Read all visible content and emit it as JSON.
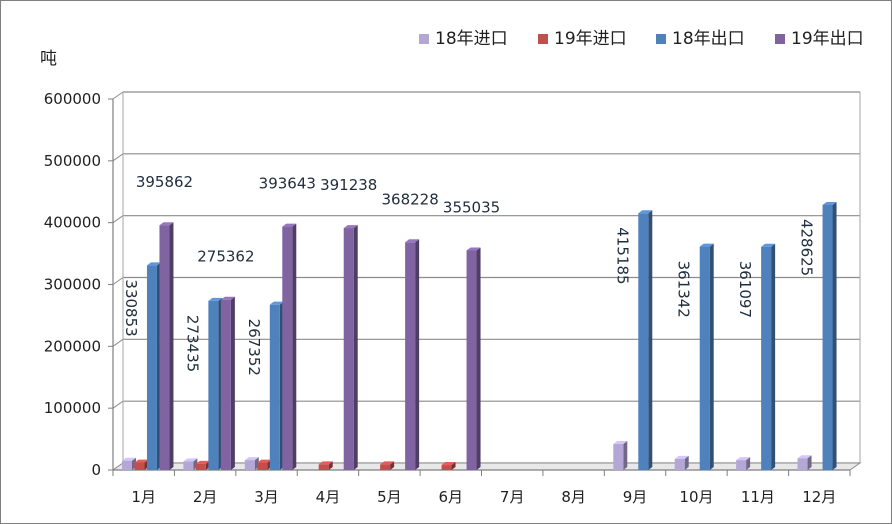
{
  "chart_data": {
    "type": "bar",
    "ylabel": "吨",
    "ylim": [
      0,
      600000
    ],
    "yticks": [
      "0",
      "100000",
      "200000",
      "300000",
      "400000",
      "500000",
      "600000"
    ],
    "categories": [
      "1月",
      "2月",
      "3月",
      "4月",
      "5月",
      "6月",
      "7月",
      "8月",
      "9月",
      "10月",
      "11月",
      "12月"
    ],
    "legend_position": "top-right",
    "grid": true,
    "series": [
      {
        "name": "18年进口",
        "color": "#b4a7d6",
        "values": [
          15000,
          14000,
          16000,
          null,
          null,
          null,
          null,
          null,
          42000,
          18000,
          16000,
          19000
        ]
      },
      {
        "name": "19年进口",
        "color": "#c0504d",
        "values": [
          12000,
          10000,
          12000,
          9000,
          9000,
          8000,
          null,
          null,
          null,
          null,
          null,
          null
        ]
      },
      {
        "name": "18年出口",
        "color": "#4f81bd",
        "values": [
          330853,
          273435,
          267352,
          null,
          null,
          null,
          null,
          null,
          415185,
          361342,
          361097,
          428625
        ]
      },
      {
        "name": "19年出口",
        "color": "#8064a2",
        "values": [
          395862,
          275362,
          393643,
          391238,
          368228,
          355035,
          null,
          null,
          null,
          null,
          null,
          null
        ]
      }
    ],
    "data_labels": {
      "horizontal": [
        {
          "text": "395862",
          "series": 3,
          "cat": 0
        },
        {
          "text": "275362",
          "series": 3,
          "cat": 1
        },
        {
          "text": "393643",
          "series": 3,
          "cat": 2
        },
        {
          "text": "391238",
          "series": 3,
          "cat": 3
        },
        {
          "text": "368228",
          "series": 3,
          "cat": 4
        },
        {
          "text": "355035",
          "series": 3,
          "cat": 5
        }
      ],
      "vertical": [
        {
          "text": "330853",
          "series": 2,
          "cat": 0
        },
        {
          "text": "273435",
          "series": 2,
          "cat": 1
        },
        {
          "text": "267352",
          "series": 2,
          "cat": 2
        },
        {
          "text": "415185",
          "series": 2,
          "cat": 8
        },
        {
          "text": "361342",
          "series": 2,
          "cat": 9
        },
        {
          "text": "361097",
          "series": 2,
          "cat": 10
        },
        {
          "text": "428625",
          "series": 2,
          "cat": 11
        }
      ]
    }
  }
}
